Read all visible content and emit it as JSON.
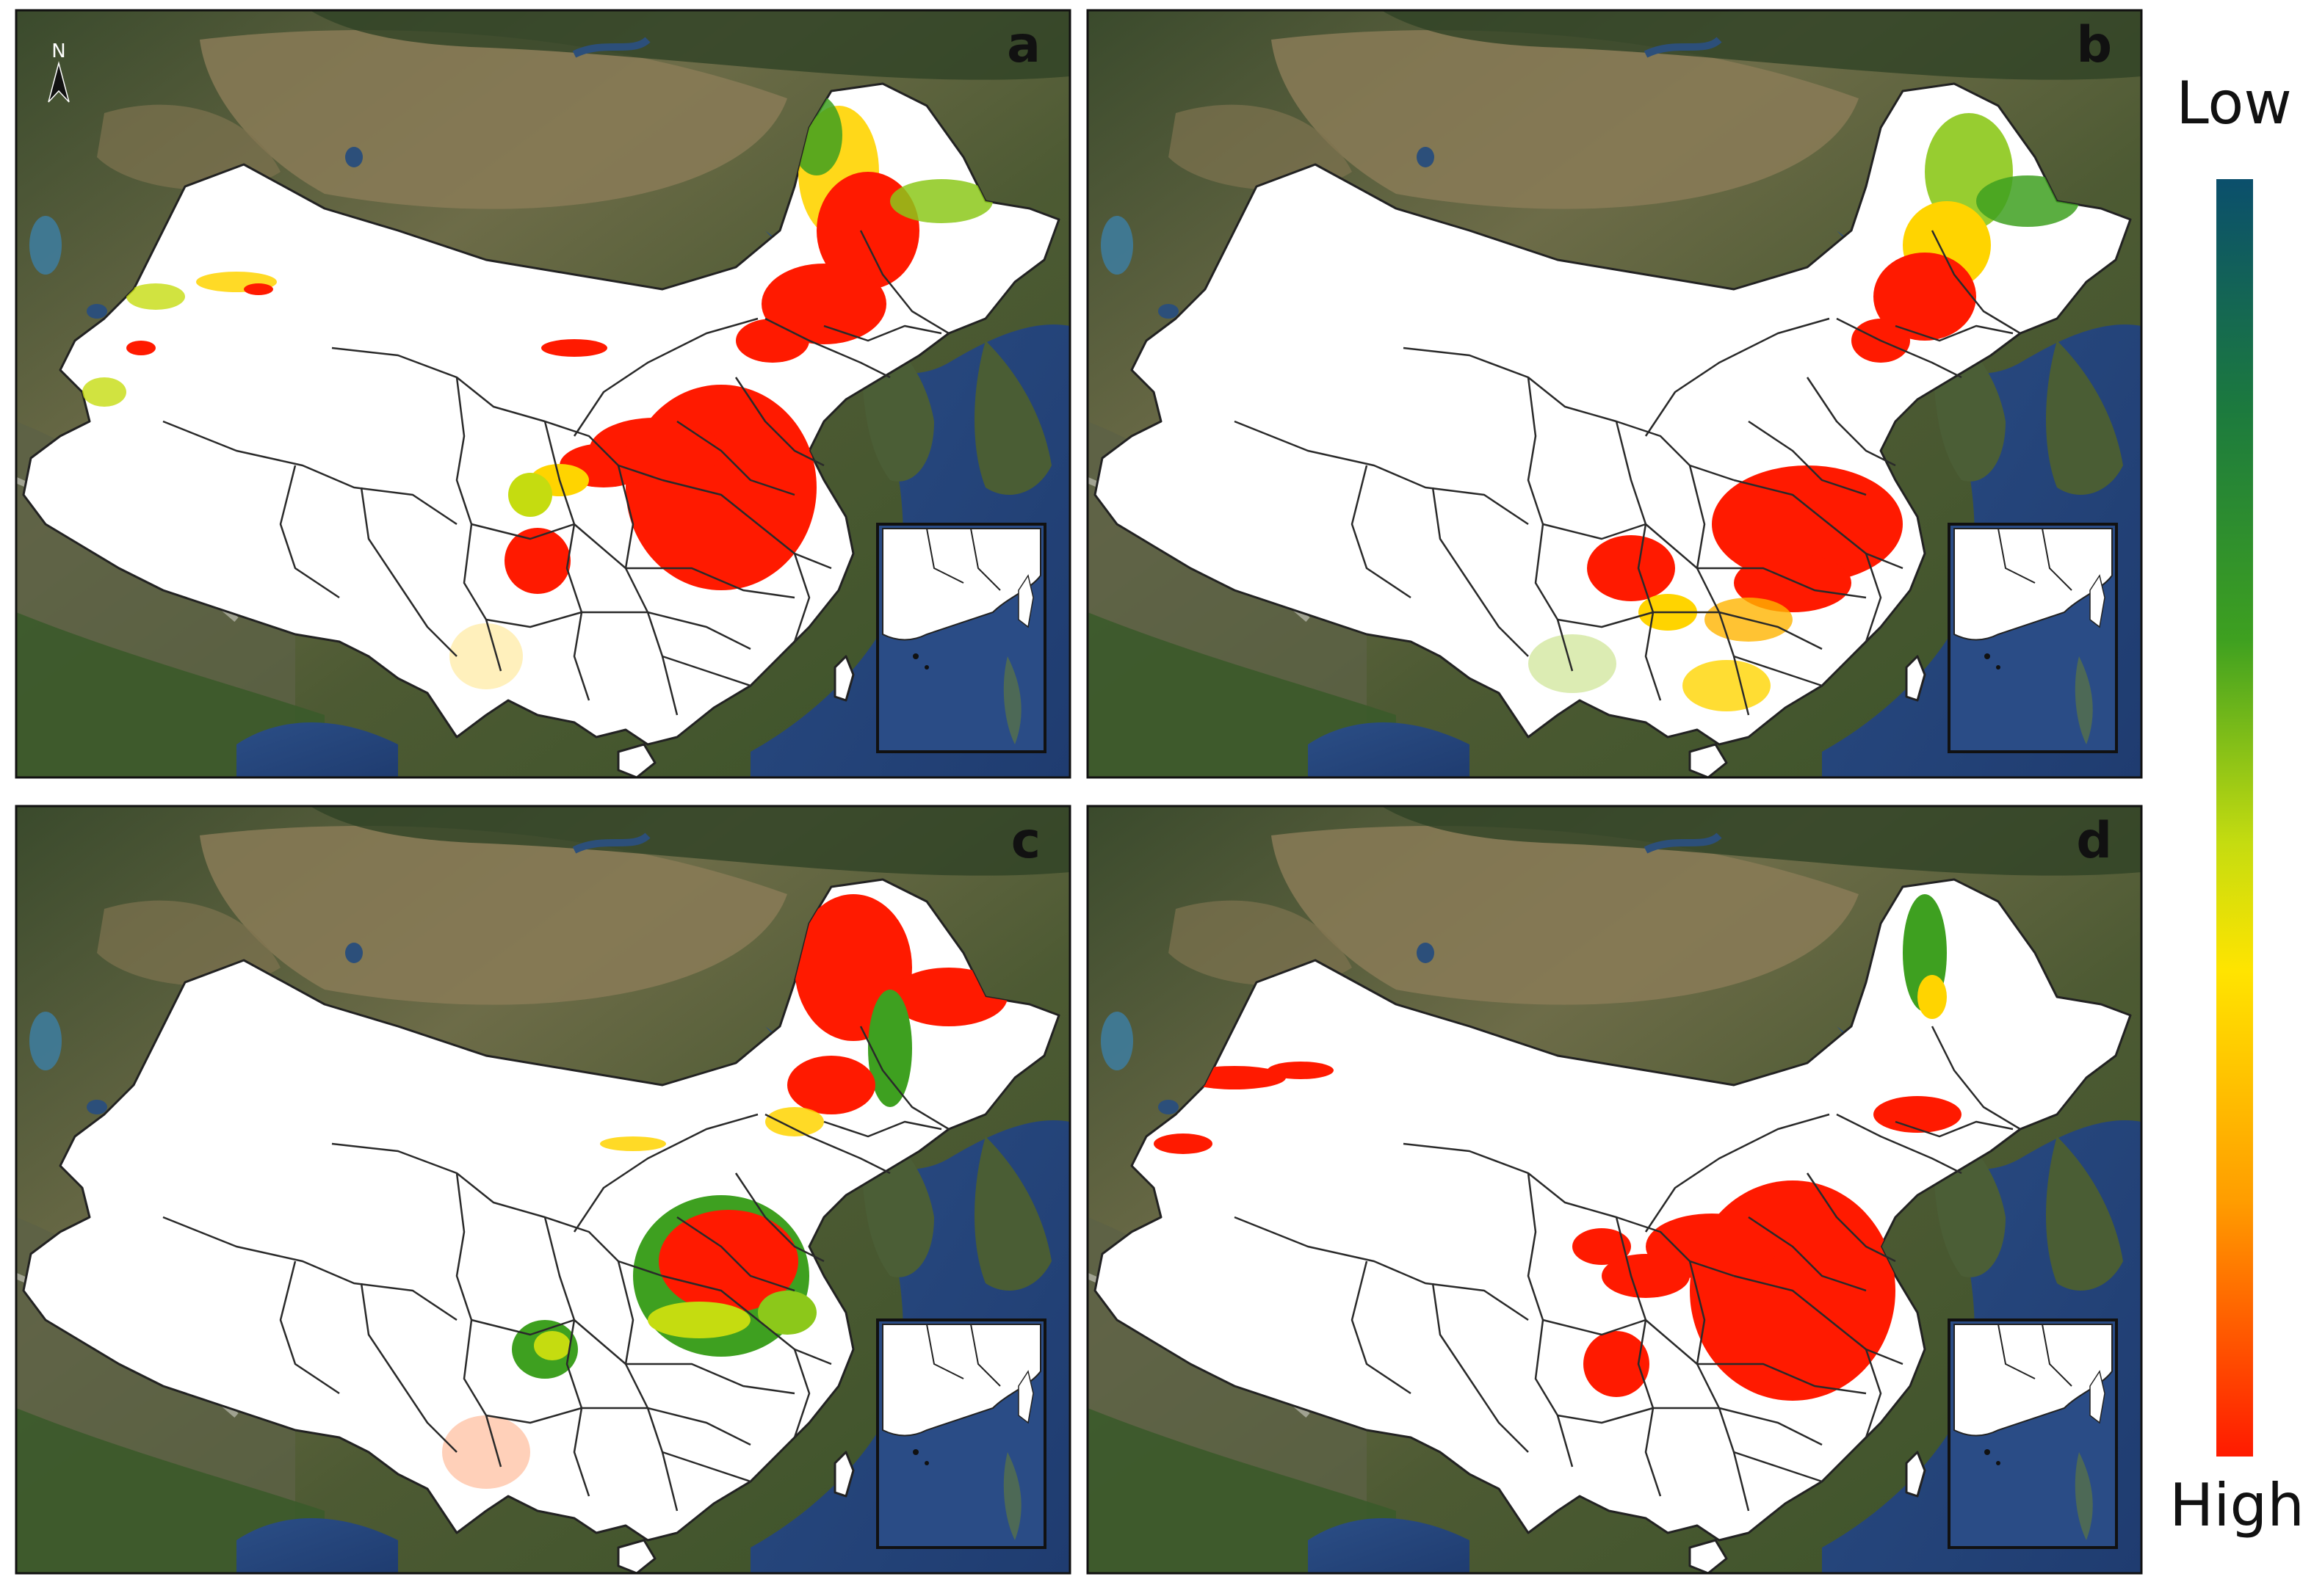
{
  "panels": [
    {
      "letter": "a"
    },
    {
      "letter": "b"
    },
    {
      "letter": "c"
    },
    {
      "letter": "d"
    }
  ],
  "legend": {
    "top_label": "Low",
    "bottom_label": "High",
    "colors": [
      "#0b4f6c",
      "#1c7a3e",
      "#3ea020",
      "#c5dc10",
      "#ffe400",
      "#ff9d00",
      "#ff1a00"
    ]
  },
  "north_arrow": {
    "label": "N"
  },
  "colors": {
    "land_dark": "#3c4d2a",
    "land_mid": "#6b6a43",
    "desert": "#8c7a55",
    "sea": "#2d4f8f",
    "high": "#ff1a00",
    "mid": "#ffd400",
    "low": "#2c8c1c",
    "mask": "#ffffff"
  }
}
